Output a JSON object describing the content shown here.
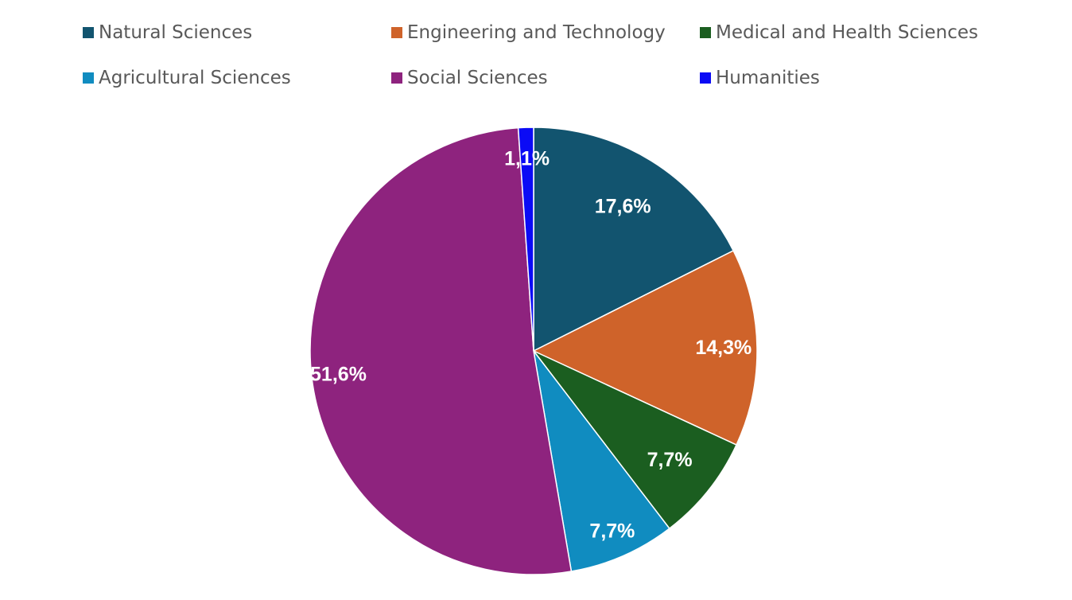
{
  "chart_data": {
    "type": "pie",
    "title": "",
    "legend_position": "top",
    "start_angle_deg": 0,
    "direction": "clockwise",
    "slices": [
      {
        "label": "Natural Sciences",
        "value": 17.6,
        "display": "17,6%",
        "color": "#12546F"
      },
      {
        "label": "Engineering and Technology",
        "value": 14.3,
        "display": "14,3%",
        "color": "#CF632A"
      },
      {
        "label": "Medical and Health Sciences",
        "value": 7.7,
        "display": "7,7%",
        "color": "#1B5E20"
      },
      {
        "label": "Agricultural Sciences",
        "value": 7.7,
        "display": "7,7%",
        "color": "#108CC0"
      },
      {
        "label": "Social Sciences",
        "value": 51.6,
        "display": "51,6%",
        "color": "#8E237E"
      },
      {
        "label": "Humanities",
        "value": 1.1,
        "display": "1,1%",
        "color": "#0B0BF5"
      }
    ]
  }
}
